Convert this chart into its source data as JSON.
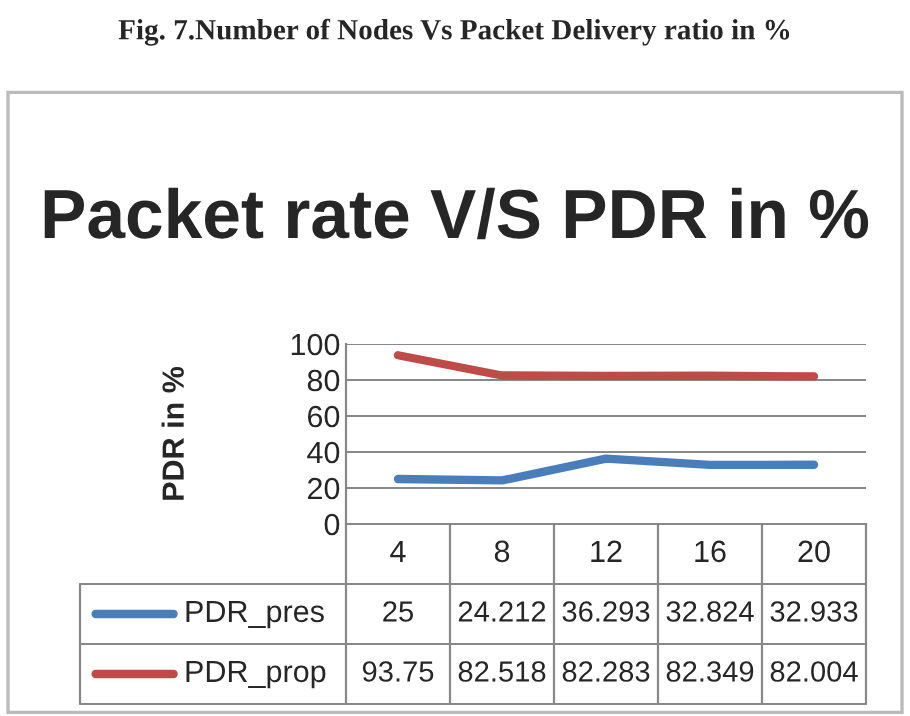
{
  "chart_data": {
    "type": "line",
    "title": "Packet rate V/S PDR in %",
    "ylabel": "PDR in %",
    "annotations": [
      "Fig. 7.Number of Nodes Vs Packet Delivery ratio in %"
    ],
    "categories": [
      "4",
      "8",
      "12",
      "16",
      "20"
    ],
    "series": [
      {
        "name": "PDR_pres",
        "color": "#4a7ebb",
        "values": [
          25,
          24.212,
          36.293,
          32.824,
          32.933
        ]
      },
      {
        "name": "PDR_prop",
        "color": "#be4b48",
        "values": [
          93.75,
          82.518,
          82.283,
          82.349,
          82.004
        ]
      }
    ],
    "ylim": [
      0,
      100
    ],
    "yticks": [
      0,
      20,
      40,
      60,
      80,
      100
    ],
    "grid": "y",
    "data_labels": true,
    "legend": "bottom",
    "marker": "none",
    "line_style": "solid"
  }
}
